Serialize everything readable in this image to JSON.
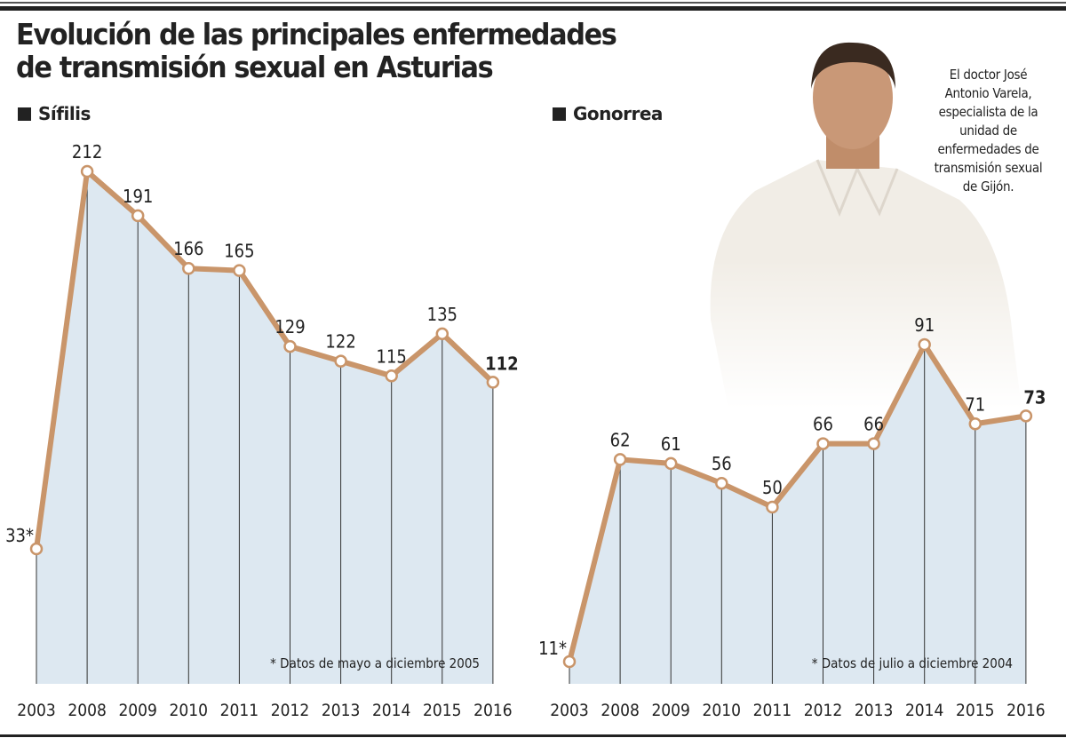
{
  "title_line1": "Evolución de las principales enfermedades",
  "title_line2": "de transmisión sexual en Asturias",
  "photo_caption": [
    "El doctor José",
    "Antonio Varela,",
    "especialista de la",
    "unidad de",
    "enfermedades de",
    "transmisión sexual",
    "de Gijón."
  ],
  "colors": {
    "line": "#c9956a",
    "fill": "#dde8f1",
    "text": "#222222"
  },
  "chart_data": [
    {
      "type": "area",
      "title": "Sífilis",
      "categories": [
        "2003",
        "2008",
        "2009",
        "2010",
        "2011",
        "2012",
        "2013",
        "2014",
        "2015",
        "2016"
      ],
      "values": [
        33,
        212,
        191,
        166,
        165,
        129,
        122,
        115,
        135,
        112
      ],
      "data_labels": [
        "33*",
        "212",
        "191",
        "166",
        "165",
        "129",
        "122",
        "115",
        "135",
        "112"
      ],
      "note": "* Datos de mayo a diciembre 2005",
      "grid": false
    },
    {
      "type": "area",
      "title": "Gonorrea",
      "categories": [
        "2003",
        "2008",
        "2009",
        "2010",
        "2011",
        "2012",
        "2013",
        "2014",
        "2015",
        "2016"
      ],
      "values": [
        11,
        62,
        61,
        56,
        50,
        66,
        66,
        91,
        71,
        73
      ],
      "data_labels": [
        "11*",
        "62",
        "61",
        "56",
        "50",
        "66",
        "66",
        "91",
        "71",
        "73"
      ],
      "note": "* Datos de julio a diciembre 2004",
      "grid": false
    }
  ]
}
